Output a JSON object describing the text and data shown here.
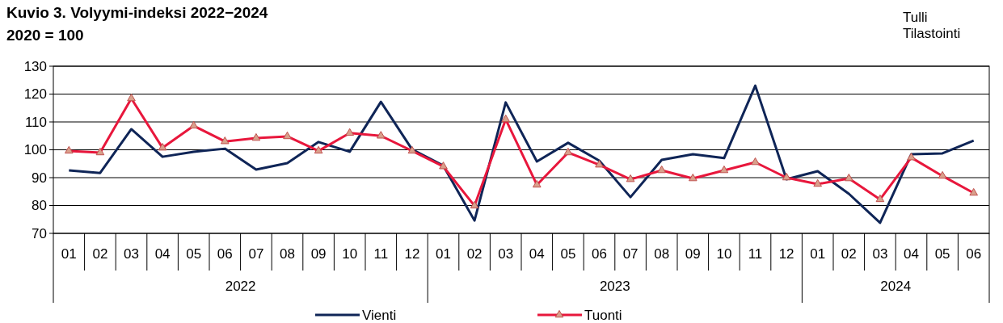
{
  "chart_data": {
    "type": "line",
    "title": "Kuvio 3. Volyymi-indeksi 2022−2024",
    "subtitle": "2020 = 100",
    "categories": [
      "01",
      "02",
      "03",
      "04",
      "05",
      "06",
      "07",
      "08",
      "09",
      "10",
      "11",
      "12",
      "01",
      "02",
      "03",
      "04",
      "05",
      "06",
      "07",
      "08",
      "09",
      "10",
      "11",
      "12",
      "01",
      "02",
      "03",
      "04",
      "05",
      "06"
    ],
    "series": [
      {
        "name": "Vienti",
        "color": "#0f2557",
        "marker": "none",
        "values": [
          92.6,
          91.7,
          107.4,
          97.5,
          99.3,
          100.4,
          92.9,
          95.2,
          102.8,
          99.3,
          117.2,
          100.1,
          94.3,
          74.6,
          117,
          95.8,
          102.5,
          96.1,
          83,
          96.4,
          98.4,
          97,
          123,
          89.4,
          92.3,
          84.2,
          73.8,
          98.4,
          98.7,
          103.3
        ]
      },
      {
        "name": "Tuonti",
        "color": "#e8173c",
        "marker": "triangle",
        "values": [
          99.6,
          99,
          118.4,
          100.7,
          108.6,
          103,
          104.2,
          104.8,
          99.6,
          106,
          105,
          99.6,
          94,
          79.9,
          110.9,
          87.4,
          99,
          94.6,
          89.4,
          92.6,
          89.7,
          92.6,
          95.5,
          90,
          87.7,
          89.7,
          82.2,
          97.2,
          90.6,
          84.5
        ]
      }
    ],
    "ylim": [
      70,
      130
    ],
    "yticks": [
      70,
      80,
      90,
      100,
      110,
      120,
      130
    ],
    "grid": "y",
    "legend": "bottom",
    "annotations": [
      "2022",
      "2023",
      "2024",
      "Tulli",
      "Tilastointi"
    ]
  }
}
